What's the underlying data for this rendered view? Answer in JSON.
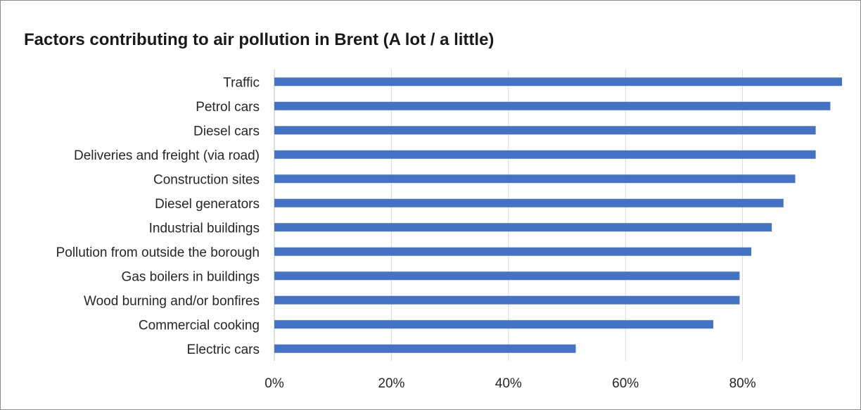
{
  "chart_data": {
    "type": "bar",
    "orientation": "horizontal",
    "title": "Factors contributing to air pollution in Brent (A lot / a little)",
    "categories": [
      "Traffic",
      "Petrol cars",
      "Diesel cars",
      "Deliveries and freight (via road)",
      "Construction sites",
      "Diesel generators",
      "Industrial buildings",
      "Pollution from outside the borough",
      "Gas boilers in buildings",
      "Wood burning and/or bonfires",
      "Commercial cooking",
      "Electric cars"
    ],
    "values": [
      97,
      95,
      92.5,
      92.5,
      89,
      87,
      85,
      81.5,
      79.5,
      79.5,
      75,
      51.5
    ],
    "xlim": [
      0,
      100
    ],
    "xticks": [
      0,
      20,
      40,
      60,
      80
    ],
    "xtick_labels": [
      "0%",
      "20%",
      "40%",
      "60%",
      "80%"
    ],
    "xlabel": "",
    "ylabel": "",
    "grid": "vertical",
    "legend": "none",
    "bar_color": "#4472c4",
    "grid_color": "#d9d9d9"
  }
}
